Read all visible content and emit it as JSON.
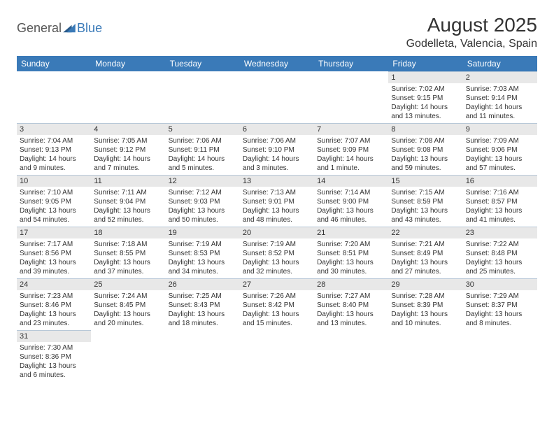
{
  "logo": {
    "part1": "General",
    "part2": "Blue"
  },
  "title": "August 2025",
  "location": "Godelleta, Valencia, Spain",
  "header_bg": "#3a7ab8",
  "day_headers": [
    "Sunday",
    "Monday",
    "Tuesday",
    "Wednesday",
    "Thursday",
    "Friday",
    "Saturday"
  ],
  "weeks": [
    [
      null,
      null,
      null,
      null,
      null,
      {
        "n": "1",
        "sr": "Sunrise: 7:02 AM",
        "ss": "Sunset: 9:15 PM",
        "dl": "Daylight: 14 hours and 13 minutes."
      },
      {
        "n": "2",
        "sr": "Sunrise: 7:03 AM",
        "ss": "Sunset: 9:14 PM",
        "dl": "Daylight: 14 hours and 11 minutes."
      }
    ],
    [
      {
        "n": "3",
        "sr": "Sunrise: 7:04 AM",
        "ss": "Sunset: 9:13 PM",
        "dl": "Daylight: 14 hours and 9 minutes."
      },
      {
        "n": "4",
        "sr": "Sunrise: 7:05 AM",
        "ss": "Sunset: 9:12 PM",
        "dl": "Daylight: 14 hours and 7 minutes."
      },
      {
        "n": "5",
        "sr": "Sunrise: 7:06 AM",
        "ss": "Sunset: 9:11 PM",
        "dl": "Daylight: 14 hours and 5 minutes."
      },
      {
        "n": "6",
        "sr": "Sunrise: 7:06 AM",
        "ss": "Sunset: 9:10 PM",
        "dl": "Daylight: 14 hours and 3 minutes."
      },
      {
        "n": "7",
        "sr": "Sunrise: 7:07 AM",
        "ss": "Sunset: 9:09 PM",
        "dl": "Daylight: 14 hours and 1 minute."
      },
      {
        "n": "8",
        "sr": "Sunrise: 7:08 AM",
        "ss": "Sunset: 9:08 PM",
        "dl": "Daylight: 13 hours and 59 minutes."
      },
      {
        "n": "9",
        "sr": "Sunrise: 7:09 AM",
        "ss": "Sunset: 9:06 PM",
        "dl": "Daylight: 13 hours and 57 minutes."
      }
    ],
    [
      {
        "n": "10",
        "sr": "Sunrise: 7:10 AM",
        "ss": "Sunset: 9:05 PM",
        "dl": "Daylight: 13 hours and 54 minutes."
      },
      {
        "n": "11",
        "sr": "Sunrise: 7:11 AM",
        "ss": "Sunset: 9:04 PM",
        "dl": "Daylight: 13 hours and 52 minutes."
      },
      {
        "n": "12",
        "sr": "Sunrise: 7:12 AM",
        "ss": "Sunset: 9:03 PM",
        "dl": "Daylight: 13 hours and 50 minutes."
      },
      {
        "n": "13",
        "sr": "Sunrise: 7:13 AM",
        "ss": "Sunset: 9:01 PM",
        "dl": "Daylight: 13 hours and 48 minutes."
      },
      {
        "n": "14",
        "sr": "Sunrise: 7:14 AM",
        "ss": "Sunset: 9:00 PM",
        "dl": "Daylight: 13 hours and 46 minutes."
      },
      {
        "n": "15",
        "sr": "Sunrise: 7:15 AM",
        "ss": "Sunset: 8:59 PM",
        "dl": "Daylight: 13 hours and 43 minutes."
      },
      {
        "n": "16",
        "sr": "Sunrise: 7:16 AM",
        "ss": "Sunset: 8:57 PM",
        "dl": "Daylight: 13 hours and 41 minutes."
      }
    ],
    [
      {
        "n": "17",
        "sr": "Sunrise: 7:17 AM",
        "ss": "Sunset: 8:56 PM",
        "dl": "Daylight: 13 hours and 39 minutes."
      },
      {
        "n": "18",
        "sr": "Sunrise: 7:18 AM",
        "ss": "Sunset: 8:55 PM",
        "dl": "Daylight: 13 hours and 37 minutes."
      },
      {
        "n": "19",
        "sr": "Sunrise: 7:19 AM",
        "ss": "Sunset: 8:53 PM",
        "dl": "Daylight: 13 hours and 34 minutes."
      },
      {
        "n": "20",
        "sr": "Sunrise: 7:19 AM",
        "ss": "Sunset: 8:52 PM",
        "dl": "Daylight: 13 hours and 32 minutes."
      },
      {
        "n": "21",
        "sr": "Sunrise: 7:20 AM",
        "ss": "Sunset: 8:51 PM",
        "dl": "Daylight: 13 hours and 30 minutes."
      },
      {
        "n": "22",
        "sr": "Sunrise: 7:21 AM",
        "ss": "Sunset: 8:49 PM",
        "dl": "Daylight: 13 hours and 27 minutes."
      },
      {
        "n": "23",
        "sr": "Sunrise: 7:22 AM",
        "ss": "Sunset: 8:48 PM",
        "dl": "Daylight: 13 hours and 25 minutes."
      }
    ],
    [
      {
        "n": "24",
        "sr": "Sunrise: 7:23 AM",
        "ss": "Sunset: 8:46 PM",
        "dl": "Daylight: 13 hours and 23 minutes."
      },
      {
        "n": "25",
        "sr": "Sunrise: 7:24 AM",
        "ss": "Sunset: 8:45 PM",
        "dl": "Daylight: 13 hours and 20 minutes."
      },
      {
        "n": "26",
        "sr": "Sunrise: 7:25 AM",
        "ss": "Sunset: 8:43 PM",
        "dl": "Daylight: 13 hours and 18 minutes."
      },
      {
        "n": "27",
        "sr": "Sunrise: 7:26 AM",
        "ss": "Sunset: 8:42 PM",
        "dl": "Daylight: 13 hours and 15 minutes."
      },
      {
        "n": "28",
        "sr": "Sunrise: 7:27 AM",
        "ss": "Sunset: 8:40 PM",
        "dl": "Daylight: 13 hours and 13 minutes."
      },
      {
        "n": "29",
        "sr": "Sunrise: 7:28 AM",
        "ss": "Sunset: 8:39 PM",
        "dl": "Daylight: 13 hours and 10 minutes."
      },
      {
        "n": "30",
        "sr": "Sunrise: 7:29 AM",
        "ss": "Sunset: 8:37 PM",
        "dl": "Daylight: 13 hours and 8 minutes."
      }
    ],
    [
      {
        "n": "31",
        "sr": "Sunrise: 7:30 AM",
        "ss": "Sunset: 8:36 PM",
        "dl": "Daylight: 13 hours and 6 minutes."
      },
      null,
      null,
      null,
      null,
      null,
      null
    ]
  ]
}
